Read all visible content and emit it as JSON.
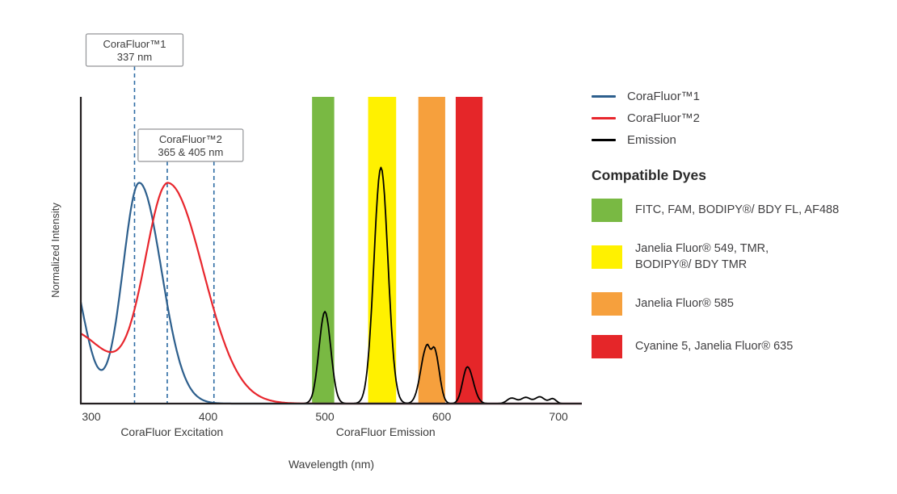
{
  "chart_data": {
    "type": "line",
    "title": "",
    "xlabel": "Wavelength (nm)",
    "ylabel": "Normalized Intensity",
    "xlim": [
      291,
      720
    ],
    "ylim": [
      0,
      1
    ],
    "xticks": [
      300,
      400,
      500,
      600,
      700
    ],
    "grid": false,
    "legend_position": "right",
    "marker_line_color": "#2e6ca4",
    "axis_color": "#231f20",
    "section_labels": [
      {
        "text": "CoraFluor Excitation",
        "nm": 369
      },
      {
        "text": "CoraFluor Emission",
        "nm": 552
      }
    ],
    "annotations": [
      {
        "text": "CoraFluor™1\n337 nm",
        "markers_nm": [
          337
        ]
      },
      {
        "text": "CoraFluor™2\n365 & 405 nm",
        "markers_nm": [
          365,
          405
        ]
      }
    ],
    "bands": [
      {
        "name": "FITC / FAM / BODIPY-BDY-FL / AF488 window",
        "color": "#79b943",
        "range_nm": [
          489,
          508
        ]
      },
      {
        "name": "Janelia Fluor 549 / TMR / BODIPY-BDY-TMR window",
        "color": "#fff100",
        "range_nm": [
          537,
          561
        ]
      },
      {
        "name": "Janelia Fluor 585 window",
        "color": "#f6a03d",
        "range_nm": [
          580,
          603
        ]
      },
      {
        "name": "Cyanine 5 / Janelia Fluor 635 window",
        "color": "#e52629",
        "range_nm": [
          612,
          635
        ]
      }
    ],
    "series": [
      {
        "name": "CoraFluor™1",
        "role": "excitation",
        "color": "#2d5f8d",
        "width": 2.2,
        "peaks": [
          {
            "mu": 278,
            "amp": 0.48,
            "sl": 30,
            "sr": 15
          },
          {
            "mu": 341,
            "amp": 0.72,
            "sl": 14,
            "sr": 19
          }
        ]
      },
      {
        "name": "CoraFluor™2",
        "role": "excitation",
        "color": "#e8262d",
        "width": 2.2,
        "peaks": [
          {
            "mu": 280,
            "amp": 0.24,
            "sl": 30,
            "sr": 34
          },
          {
            "mu": 366,
            "amp": 0.71,
            "sl": 20,
            "sr": 30
          }
        ]
      },
      {
        "name": "Emission",
        "role": "emission",
        "color": "#000000",
        "width": 1.8,
        "peaks": [
          {
            "mu": 500,
            "amp": 0.3,
            "sl": 5,
            "sr": 5
          },
          {
            "mu": 548,
            "amp": 0.77,
            "sl": 6,
            "sr": 6
          },
          {
            "mu": 587,
            "amp": 0.18,
            "sl": 5,
            "sr": 3
          },
          {
            "mu": 594,
            "amp": 0.17,
            "sl": 3,
            "sr": 4
          },
          {
            "mu": 622,
            "amp": 0.12,
            "sl": 4,
            "sr": 5
          },
          {
            "mu": 660,
            "amp": 0.018,
            "sl": 4,
            "sr": 4
          },
          {
            "mu": 672,
            "amp": 0.02,
            "sl": 4,
            "sr": 4
          },
          {
            "mu": 684,
            "amp": 0.022,
            "sl": 4,
            "sr": 4
          },
          {
            "mu": 695,
            "amp": 0.016,
            "sl": 3,
            "sr": 3
          }
        ]
      }
    ]
  },
  "legend": {
    "line_entries": [
      {
        "label": "CoraFluor™1",
        "color": "#2d5f8d"
      },
      {
        "label": "CoraFluor™2",
        "color": "#e8262d"
      },
      {
        "label": "Emission",
        "color": "#000000"
      }
    ],
    "dyes_heading": "Compatible Dyes",
    "dye_entries": [
      {
        "label": "FITC, FAM, BODIPY®/ BDY FL, AF488",
        "color": "#79b943"
      },
      {
        "label": "Janelia Fluor® 549, TMR,\nBODIPY®/ BDY TMR",
        "color": "#fff100"
      },
      {
        "label": "Janelia Fluor® 585",
        "color": "#f6a03d"
      },
      {
        "label": "Cyanine 5, Janelia Fluor® 635",
        "color": "#e52629"
      }
    ]
  }
}
